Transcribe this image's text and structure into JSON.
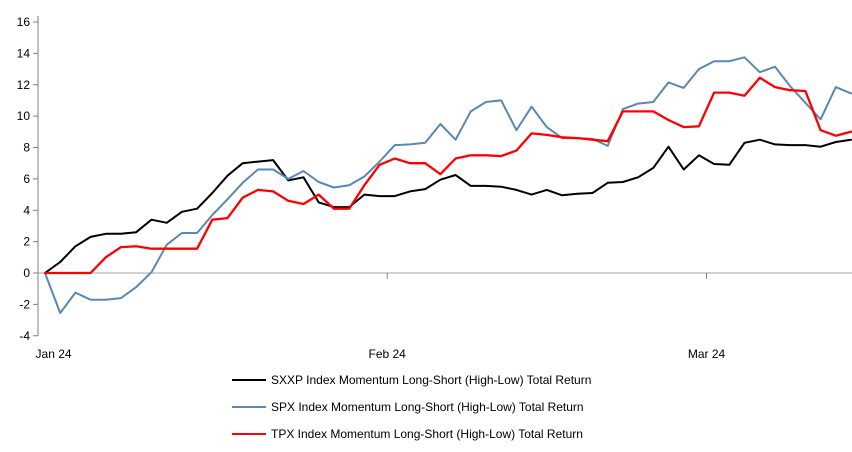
{
  "chart_data": {
    "type": "line",
    "title": "",
    "xlabel": "",
    "ylabel": "",
    "ylim": [
      -4,
      16
    ],
    "y_tick_step": 2,
    "y_tick_labels": [
      "16",
      "14",
      "12",
      "10",
      "8",
      "6",
      "4",
      "2",
      "0",
      "-2",
      "-4"
    ],
    "x_tick_labels": [
      "Jan 24",
      "Feb 24",
      "Mar 24"
    ],
    "x_tick_indices": [
      0.3,
      22.5,
      43.5
    ],
    "grid": "zero-line-only",
    "legend_position": "bottom-center",
    "x_description": "Daily observations, early January 2024 to mid-March 2024",
    "series": [
      {
        "name": "SXXP Index Momentum Long-Short (High-Low) Total Return",
        "color": "#000000",
        "values": [
          0.0,
          0.7,
          1.7,
          2.3,
          2.5,
          2.5,
          2.6,
          3.4,
          3.2,
          3.9,
          4.1,
          5.1,
          6.2,
          7.0,
          7.1,
          7.2,
          5.9,
          6.1,
          4.5,
          4.2,
          4.2,
          5.0,
          4.9,
          4.9,
          5.2,
          5.35,
          5.95,
          6.25,
          5.55,
          5.55,
          5.5,
          5.3,
          5.0,
          5.3,
          4.95,
          5.05,
          5.1,
          5.75,
          5.8,
          6.1,
          6.7,
          8.05,
          6.6,
          7.5,
          6.95,
          6.9,
          8.3,
          8.5,
          8.2,
          8.15,
          8.15,
          8.05,
          8.35,
          8.5
        ]
      },
      {
        "name": "SPX Index Momentum Long-Short (High-Low) Total Return",
        "color": "#5B87B5",
        "values": [
          0.0,
          -2.55,
          -1.25,
          -1.7,
          -1.7,
          -1.6,
          -0.9,
          0.05,
          1.8,
          2.55,
          2.55,
          3.7,
          4.7,
          5.75,
          6.6,
          6.6,
          6.0,
          6.5,
          5.8,
          5.45,
          5.6,
          6.15,
          7.1,
          8.15,
          8.2,
          8.3,
          9.5,
          8.5,
          10.3,
          10.9,
          11.0,
          9.1,
          10.6,
          9.3,
          8.6,
          8.6,
          8.55,
          8.1,
          10.45,
          10.8,
          10.9,
          12.15,
          11.8,
          13.0,
          13.5,
          13.5,
          13.75,
          12.8,
          13.15,
          11.9,
          10.85,
          9.8,
          11.85,
          11.45
        ]
      },
      {
        "name": "TPX Index Momentum Long-Short (High-Low) Total Return",
        "color": "#FF0000",
        "values": [
          0.0,
          0.0,
          0.0,
          0.0,
          1.0,
          1.65,
          1.7,
          1.55,
          1.55,
          1.55,
          1.55,
          3.4,
          3.5,
          4.8,
          5.3,
          5.2,
          4.6,
          4.4,
          5.0,
          4.1,
          4.1,
          5.6,
          6.9,
          7.3,
          7.0,
          7.0,
          6.3,
          7.3,
          7.5,
          7.5,
          7.45,
          7.8,
          8.9,
          8.8,
          8.65,
          8.6,
          8.5,
          8.4,
          10.3,
          10.3,
          10.3,
          9.75,
          9.3,
          9.35,
          11.5,
          11.5,
          11.3,
          12.45,
          11.85,
          11.65,
          11.6,
          9.1,
          8.75,
          9.0
        ]
      }
    ]
  },
  "style_colors": {
    "axis": "#808080",
    "zero_gridline": "#A6A6A6",
    "text": "#000000",
    "background": "#FFFFFF"
  }
}
